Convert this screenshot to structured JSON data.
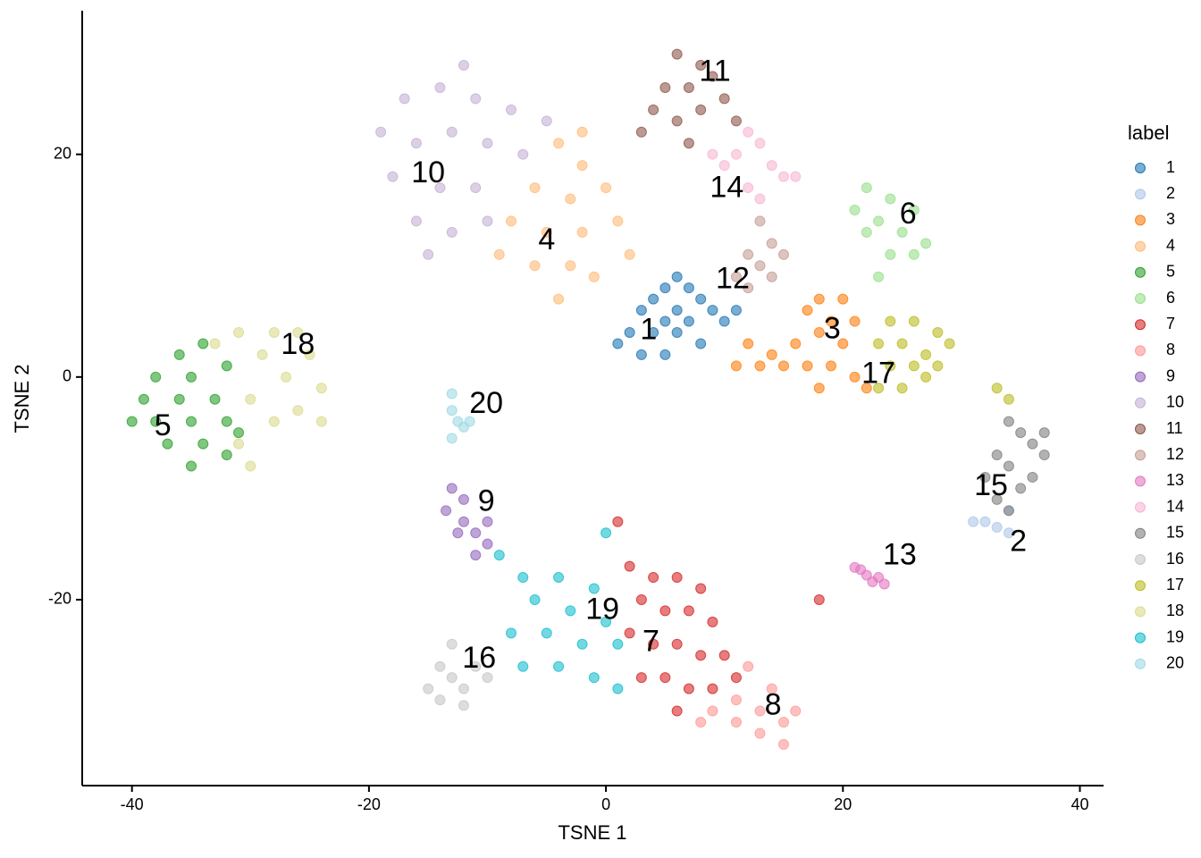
{
  "chart_data": {
    "type": "scatter",
    "xlabel": "TSNE 1",
    "ylabel": "TSNE 2",
    "legend_title": "label",
    "legend_position": "right",
    "xlim": [
      -44.2,
      42
    ],
    "ylim": [
      -36.7,
      32.9
    ],
    "xticks": [
      -40,
      -20,
      0,
      20,
      40
    ],
    "yticks": [
      -20,
      0,
      20
    ],
    "grid": false,
    "series": [
      {
        "name": "1",
        "color": "#1f77b4",
        "x": [
          6,
          5,
          7,
          4,
          6,
          8,
          3,
          5,
          7,
          9,
          11,
          2,
          4,
          6,
          8,
          3,
          5,
          1,
          10
        ],
        "y": [
          9,
          8,
          8,
          7,
          6,
          7,
          6,
          5,
          5,
          6,
          6,
          4,
          4,
          4,
          3,
          2,
          2,
          3,
          5
        ]
      },
      {
        "name": "2",
        "color": "#aec7e8",
        "x": [
          32,
          33,
          34,
          34,
          31
        ],
        "y": [
          -13,
          -13.5,
          -14,
          -12,
          -13
        ]
      },
      {
        "name": "3",
        "color": "#ff7f0e",
        "x": [
          18,
          20,
          17,
          19,
          21,
          18,
          20,
          16,
          14,
          12,
          13,
          15,
          17,
          19,
          21,
          22,
          11,
          18
        ],
        "y": [
          7,
          7,
          6,
          5,
          5,
          4,
          3,
          3,
          2,
          3,
          1,
          1,
          1,
          1,
          0,
          -1,
          1,
          -1
        ]
      },
      {
        "name": "4",
        "color": "#ffbb78",
        "x": [
          -4,
          -2,
          -6,
          -3,
          0,
          -8,
          -5,
          -2,
          1,
          -9,
          -6,
          -3,
          -1,
          -4,
          2,
          -2
        ],
        "y": [
          21,
          19,
          17,
          16,
          17,
          14,
          13,
          13,
          14,
          11,
          10,
          10,
          9,
          7,
          11,
          22
        ]
      },
      {
        "name": "5",
        "color": "#2ca02c",
        "x": [
          -36,
          -34,
          -38,
          -35,
          -32,
          -39,
          -36,
          -33,
          -38,
          -35,
          -32,
          -37,
          -34,
          -31,
          -35,
          -32,
          -40
        ],
        "y": [
          2,
          3,
          0,
          0,
          1,
          -2,
          -2,
          -2,
          -4,
          -4,
          -4,
          -6,
          -6,
          -5,
          -8,
          -7,
          -4
        ]
      },
      {
        "name": "6",
        "color": "#98df8a",
        "x": [
          22,
          24,
          26,
          21,
          23,
          25,
          27,
          22,
          24,
          26,
          23
        ],
        "y": [
          17,
          16,
          15,
          15,
          14,
          13,
          12,
          13,
          11,
          11,
          9
        ]
      },
      {
        "name": "7",
        "color": "#d62728",
        "x": [
          1,
          2,
          4,
          6,
          8,
          3,
          5,
          7,
          9,
          2,
          4,
          6,
          8,
          10,
          3,
          5,
          7,
          9,
          11,
          6,
          18
        ],
        "y": [
          -13,
          -17,
          -18,
          -18,
          -19,
          -20,
          -21,
          -21,
          -22,
          -23,
          -24,
          -24,
          -25,
          -25,
          -27,
          -27,
          -28,
          -28,
          -27,
          -30,
          -20
        ]
      },
      {
        "name": "8",
        "color": "#ff9896",
        "x": [
          12,
          14,
          11,
          13,
          15,
          9,
          11,
          13,
          15,
          8,
          16
        ],
        "y": [
          -26,
          -28,
          -29,
          -30,
          -31,
          -30,
          -31,
          -32,
          -33,
          -31,
          -30
        ]
      },
      {
        "name": "9",
        "color": "#9467bd",
        "x": [
          -13,
          -12,
          -13.5,
          -12,
          -11,
          -12.5,
          -10,
          -11,
          -10
        ],
        "y": [
          -10,
          -11,
          -12,
          -13,
          -14,
          -14,
          -15,
          -16,
          -13
        ]
      },
      {
        "name": "10",
        "color": "#c5b0d5",
        "x": [
          -17,
          -14,
          -11,
          -8,
          -19,
          -16,
          -13,
          -10,
          -7,
          -18,
          -14,
          -11,
          -16,
          -13,
          -10,
          -15,
          -5,
          -12
        ],
        "y": [
          25,
          26,
          25,
          24,
          22,
          21,
          22,
          21,
          20,
          18,
          17,
          17,
          14,
          13,
          14,
          11,
          23,
          28
        ]
      },
      {
        "name": "11",
        "color": "#8c564b",
        "x": [
          6,
          8,
          9,
          5,
          7,
          10,
          4,
          6,
          8,
          11,
          7,
          3
        ],
        "y": [
          29,
          28,
          27,
          26,
          26,
          25,
          24,
          23,
          24,
          23,
          21,
          22
        ]
      },
      {
        "name": "12",
        "color": "#c49c94",
        "x": [
          13,
          14,
          12,
          15,
          13,
          14,
          11,
          12
        ],
        "y": [
          14,
          12,
          11,
          11,
          10,
          9,
          9,
          8
        ]
      },
      {
        "name": "13",
        "color": "#e377c2",
        "x": [
          21.5,
          22,
          23,
          22.5,
          21,
          23.5
        ],
        "y": [
          -17.3,
          -17.8,
          -18,
          -18.4,
          -17.1,
          -18.6
        ]
      },
      {
        "name": "14",
        "color": "#f7b6d2",
        "x": [
          12,
          13,
          11,
          14,
          10,
          15,
          12,
          13,
          16,
          9
        ],
        "y": [
          22,
          21,
          20,
          19,
          19,
          18,
          17,
          16,
          18,
          20
        ]
      },
      {
        "name": "15",
        "color": "#7f7f7f",
        "x": [
          34,
          35,
          36,
          37,
          33,
          34,
          36,
          32,
          35,
          33,
          34,
          37
        ],
        "y": [
          -4,
          -5,
          -6,
          -7,
          -7,
          -8,
          -9,
          -9,
          -10,
          -11,
          -12,
          -5
        ]
      },
      {
        "name": "16",
        "color": "#c7c7c7",
        "x": [
          -14,
          -15,
          -13,
          -12,
          -11,
          -10,
          -14,
          -12,
          -13
        ],
        "y": [
          -26,
          -28,
          -27,
          -28,
          -26,
          -27,
          -29,
          -29.5,
          -24
        ]
      },
      {
        "name": "17",
        "color": "#bcbd22",
        "x": [
          24,
          26,
          28,
          23,
          25,
          27,
          29,
          24,
          26,
          28,
          23,
          25,
          27,
          33,
          34
        ],
        "y": [
          5,
          5,
          4,
          3,
          3,
          2,
          3,
          1,
          1,
          1,
          -1,
          -1,
          0,
          -1,
          -2
        ]
      },
      {
        "name": "18",
        "color": "#dbdb8d",
        "x": [
          -31,
          -28,
          -26,
          -33,
          -29,
          -25,
          -27,
          -24,
          -30,
          -26,
          -28,
          -31,
          -30,
          -24
        ],
        "y": [
          4,
          4,
          4,
          3,
          2,
          2,
          0,
          -1,
          -2,
          -3,
          -4,
          -6,
          -8,
          -4
        ]
      },
      {
        "name": "19",
        "color": "#17becf",
        "x": [
          -7,
          -4,
          -1,
          -6,
          -3,
          0,
          -8,
          -5,
          -2,
          1,
          -7,
          -4,
          -1,
          1,
          -9,
          0
        ],
        "y": [
          -18,
          -18,
          -19,
          -20,
          -21,
          -22,
          -23,
          -23,
          -24,
          -24,
          -26,
          -26,
          -27,
          -28,
          -16,
          -14
        ]
      },
      {
        "name": "20",
        "color": "#9edae5",
        "x": [
          -13,
          -13,
          -12.5,
          -12,
          -13,
          -11.5
        ],
        "y": [
          -1.5,
          -3,
          -4,
          -4.5,
          -5.5,
          -4
        ]
      }
    ],
    "annotations": [
      {
        "text": "10",
        "x": -15.0,
        "y": 18.2
      },
      {
        "text": "4",
        "x": -5.0,
        "y": 12.2
      },
      {
        "text": "11",
        "x": 9.2,
        "y": 27.3
      },
      {
        "text": "14",
        "x": 10.2,
        "y": 16.9
      },
      {
        "text": "6",
        "x": 25.5,
        "y": 14.5
      },
      {
        "text": "12",
        "x": 10.7,
        "y": 8.7
      },
      {
        "text": "1",
        "x": 3.6,
        "y": 4.1
      },
      {
        "text": "3",
        "x": 19.1,
        "y": 4.2
      },
      {
        "text": "17",
        "x": 23.0,
        "y": 0.2
      },
      {
        "text": "18",
        "x": -26.0,
        "y": 2.8
      },
      {
        "text": "5",
        "x": -37.4,
        "y": -4.5
      },
      {
        "text": "20",
        "x": -10.1,
        "y": -2.5
      },
      {
        "text": "9",
        "x": -10.1,
        "y": -11.3
      },
      {
        "text": "15",
        "x": 32.5,
        "y": -9.9
      },
      {
        "text": "2",
        "x": 34.8,
        "y": -14.9
      },
      {
        "text": "13",
        "x": 24.8,
        "y": -16.1
      },
      {
        "text": "19",
        "x": -0.3,
        "y": -21.0
      },
      {
        "text": "7",
        "x": 3.8,
        "y": -23.9
      },
      {
        "text": "16",
        "x": -10.7,
        "y": -25.4
      },
      {
        "text": "8",
        "x": 14.1,
        "y": -29.6
      }
    ]
  }
}
